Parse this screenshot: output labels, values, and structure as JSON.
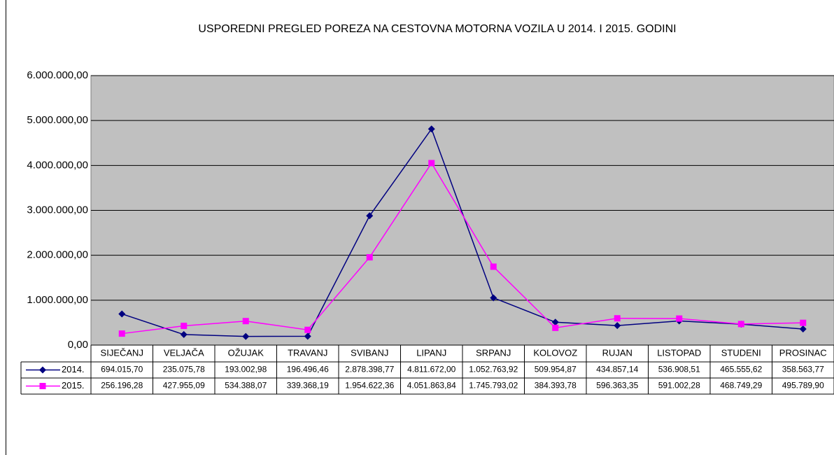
{
  "chart_data": {
    "type": "line",
    "title": "USPOREDNI PREGLED POREZA NA CESTOVNA MOTORNA VOZILA U 2014. I 2015. GODINI",
    "categories": [
      "SIJEČANJ",
      "VELJAČA",
      "OŽUJAK",
      "TRAVANJ",
      "SVIBANJ",
      "LIPANJ",
      "SRPANJ",
      "KOLOVOZ",
      "RUJAN",
      "LISTOPAD",
      "STUDENI",
      "PROSINAC"
    ],
    "series": [
      {
        "name": "2014.",
        "color": "#000080",
        "marker": "diamond",
        "values": [
          694015.7,
          235075.78,
          193002.98,
          196496.46,
          2878398.77,
          4811672.0,
          1052763.92,
          509954.87,
          434857.14,
          536908.51,
          465555.62,
          358563.77
        ],
        "value_labels": [
          "694.015,70",
          "235.075,78",
          "193.002,98",
          "196.496,46",
          "2.878.398,77",
          "4.811.672,00",
          "1.052.763,92",
          "509.954,87",
          "434.857,14",
          "536.908,51",
          "465.555,62",
          "358.563,77"
        ]
      },
      {
        "name": "2015.",
        "color": "#ff00ff",
        "marker": "square",
        "values": [
          256196.28,
          427955.09,
          534388.07,
          339368.19,
          1954622.36,
          4051863.84,
          1745793.02,
          384393.78,
          596363.35,
          591002.28,
          468749.29,
          495789.9
        ],
        "value_labels": [
          "256.196,28",
          "427.955,09",
          "534.388,07",
          "339.368,19",
          "1.954.622,36",
          "4.051.863,84",
          "1.745.793,02",
          "384.393,78",
          "596.363,35",
          "591.002,28",
          "468.749,29",
          "495.789,90"
        ]
      }
    ],
    "ylim": [
      0,
      6000000
    ],
    "yticks": [
      {
        "value": 0,
        "label": "0,00"
      },
      {
        "value": 1000000,
        "label": "1.000.000,00"
      },
      {
        "value": 2000000,
        "label": "2.000.000,00"
      },
      {
        "value": 3000000,
        "label": "3.000.000,00"
      },
      {
        "value": 4000000,
        "label": "4.000.000,00"
      },
      {
        "value": 5000000,
        "label": "5.000.000,00"
      },
      {
        "value": 6000000,
        "label": "6.000.000,00"
      }
    ],
    "grid": true,
    "plot_background": "#c0c0c0"
  }
}
